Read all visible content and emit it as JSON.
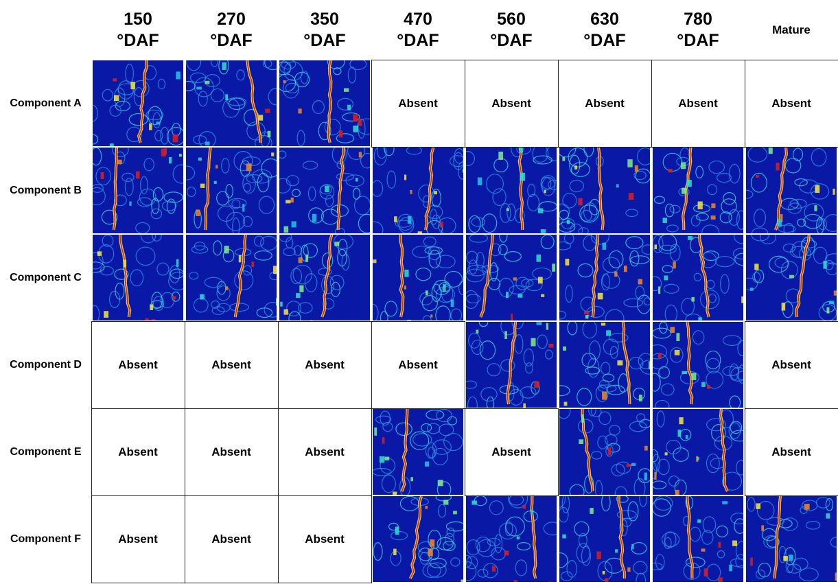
{
  "columns": [
    "150 °DAF",
    "270 °DAF",
    "350 °DAF",
    "470 °DAF",
    "560 °DAF",
    "630 °DAF",
    "780 °DAF",
    "Mature"
  ],
  "rows": [
    {
      "label": "Component A",
      "cells": [
        null,
        null,
        null,
        "Absent",
        "Absent",
        "Absent",
        "Absent",
        "Absent"
      ]
    },
    {
      "label": "Component B",
      "cells": [
        null,
        null,
        null,
        null,
        null,
        null,
        null,
        null
      ]
    },
    {
      "label": "Component C",
      "cells": [
        null,
        null,
        null,
        null,
        null,
        null,
        null,
        null
      ]
    },
    {
      "label": "Component D",
      "cells": [
        "Absent",
        "Absent",
        "Absent",
        "Absent",
        null,
        null,
        null,
        "Absent"
      ]
    },
    {
      "label": "Component E",
      "cells": [
        "Absent",
        "Absent",
        "Absent",
        null,
        "Absent",
        null,
        null,
        "Absent"
      ]
    },
    {
      "label": "Component F",
      "cells": [
        "Absent",
        "Absent",
        "Absent",
        null,
        null,
        null,
        null,
        null
      ]
    }
  ]
}
